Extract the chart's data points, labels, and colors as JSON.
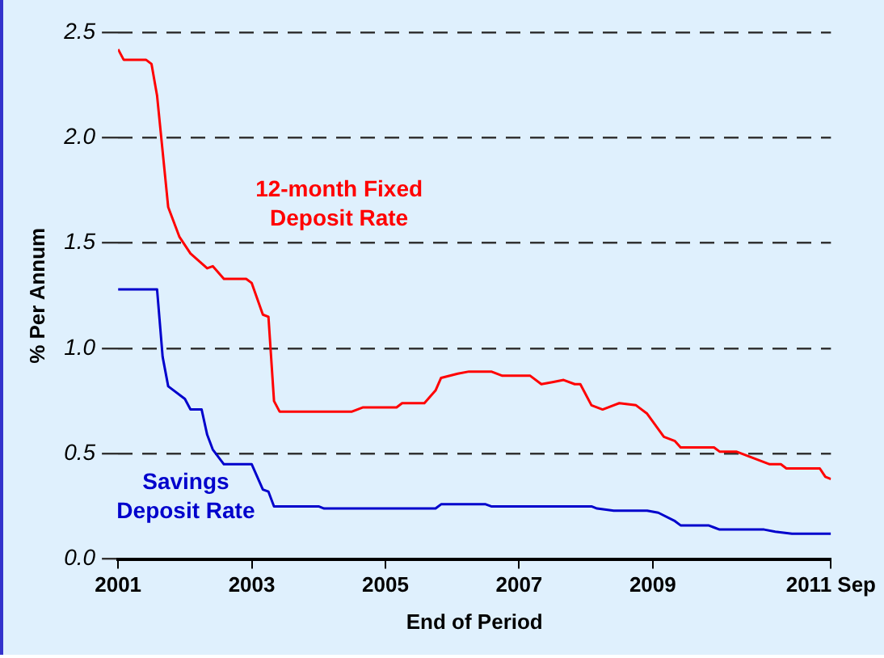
{
  "chart_data": {
    "type": "line",
    "xlabel": "End of Period",
    "ylabel": "% Per Annum",
    "xlim": [
      "2001-01",
      "2011-09"
    ],
    "xticks": [
      {
        "value": "2001-01",
        "label": "2001"
      },
      {
        "value": "2003-01",
        "label": "2003"
      },
      {
        "value": "2005-01",
        "label": "2005"
      },
      {
        "value": "2007-01",
        "label": "2007"
      },
      {
        "value": "2009-01",
        "label": "2009"
      },
      {
        "value": "2011-09",
        "label": "2011 Sep"
      }
    ],
    "ylim": [
      0,
      2.5
    ],
    "yticks": [
      {
        "value": 0,
        "label": "0.0"
      },
      {
        "value": 0.5,
        "label": "0.5"
      },
      {
        "value": 1,
        "label": "1.0"
      },
      {
        "value": 1.5,
        "label": "1.5"
      },
      {
        "value": 2,
        "label": "2.0"
      },
      {
        "value": 2.5,
        "label": "2.5"
      }
    ],
    "grid": "y",
    "legend": false,
    "marker": "none",
    "line_style": "solid",
    "series": [
      {
        "name": "12-month Fixed Deposit Rate",
        "color": "#ff0000",
        "x": [
          "2001-01",
          "2001-02",
          "2001-06",
          "2001-07",
          "2001-08",
          "2001-10",
          "2001-12",
          "2002-02",
          "2002-05",
          "2002-06",
          "2002-08",
          "2002-12",
          "2003-01",
          "2003-03",
          "2003-04",
          "2003-05",
          "2003-06",
          "2004-07",
          "2004-09",
          "2005-03",
          "2005-04",
          "2005-08",
          "2005-10",
          "2005-11",
          "2006-02",
          "2006-04",
          "2006-08",
          "2006-10",
          "2007-03",
          "2007-05",
          "2007-07",
          "2007-09",
          "2007-11",
          "2007-12",
          "2008-02",
          "2008-04",
          "2008-07",
          "2008-10",
          "2008-12",
          "2009-03",
          "2009-05",
          "2009-06",
          "2009-12",
          "2010-01",
          "2010-04",
          "2010-06",
          "2010-08",
          "2010-10",
          "2010-12",
          "2011-01",
          "2011-07",
          "2011-08",
          "2011-09"
        ],
        "values": [
          2.42,
          2.37,
          2.37,
          2.35,
          2.2,
          1.67,
          1.53,
          1.45,
          1.38,
          1.39,
          1.33,
          1.33,
          1.31,
          1.16,
          1.15,
          0.75,
          0.7,
          0.7,
          0.72,
          0.72,
          0.74,
          0.74,
          0.8,
          0.86,
          0.88,
          0.89,
          0.89,
          0.87,
          0.87,
          0.83,
          0.84,
          0.85,
          0.83,
          0.83,
          0.73,
          0.71,
          0.74,
          0.73,
          0.69,
          0.58,
          0.56,
          0.53,
          0.53,
          0.51,
          0.51,
          0.49,
          0.47,
          0.45,
          0.45,
          0.43,
          0.43,
          0.39,
          0.38
        ]
      },
      {
        "name": "Savings Deposit Rate",
        "color": "#0000cc",
        "x": [
          "2001-01",
          "2001-08",
          "2001-09",
          "2001-10",
          "2002-01",
          "2002-02",
          "2002-04",
          "2002-05",
          "2002-06",
          "2002-08",
          "2003-01",
          "2003-03",
          "2003-04",
          "2003-05",
          "2004-01",
          "2004-02",
          "2005-10",
          "2005-11",
          "2006-07",
          "2006-08",
          "2008-02",
          "2008-03",
          "2008-06",
          "2008-12",
          "2009-02",
          "2009-05",
          "2009-06",
          "2009-11",
          "2009-12",
          "2010-01",
          "2010-09",
          "2010-11",
          "2011-02",
          "2011-09"
        ],
        "values": [
          1.28,
          1.28,
          0.96,
          0.82,
          0.76,
          0.71,
          0.71,
          0.59,
          0.52,
          0.45,
          0.45,
          0.33,
          0.32,
          0.25,
          0.25,
          0.24,
          0.24,
          0.26,
          0.26,
          0.25,
          0.25,
          0.24,
          0.23,
          0.23,
          0.22,
          0.18,
          0.16,
          0.16,
          0.15,
          0.14,
          0.14,
          0.13,
          0.12,
          0.12
        ]
      }
    ]
  }
}
